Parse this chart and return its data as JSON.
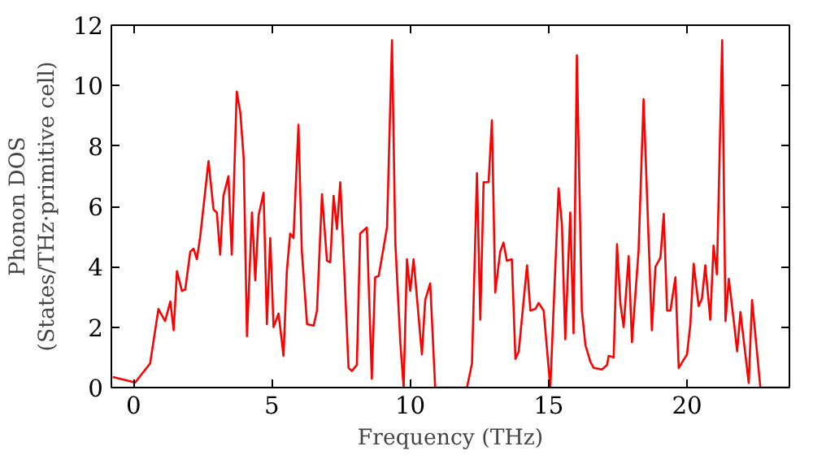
{
  "chart_data": {
    "type": "line",
    "xlabel": "Frequency (THz)",
    "ylabel": "Phonon DOS\n(States/THz·primitive cell)",
    "xlim": [
      -0.8,
      23.7
    ],
    "ylim": [
      0,
      12
    ],
    "xticks": [
      0,
      5,
      10,
      15,
      20
    ],
    "yticks": [
      0,
      2,
      4,
      6,
      8,
      10,
      12
    ],
    "grid": false,
    "marker": "none",
    "line_style": "solid",
    "series": [
      {
        "color": "#ff0000",
        "x": [
          -0.75,
          0.06,
          0.6,
          0.9,
          1.14,
          1.33,
          1.45,
          1.57,
          1.75,
          1.87,
          2.05,
          2.17,
          2.29,
          2.41,
          2.71,
          2.89,
          3.01,
          3.13,
          3.25,
          3.43,
          3.55,
          3.73,
          3.86,
          3.98,
          4.1,
          4.28,
          4.4,
          4.52,
          4.7,
          4.82,
          4.94,
          5.06,
          5.24,
          5.42,
          5.54,
          5.66,
          5.78,
          5.96,
          6.08,
          6.27,
          6.51,
          6.63,
          6.81,
          6.99,
          7.11,
          7.23,
          7.35,
          7.47,
          7.59,
          7.77,
          7.89,
          8.07,
          8.19,
          8.43,
          8.61,
          8.73,
          8.86,
          9.16,
          9.34,
          9.46,
          9.64,
          9.76,
          9.88,
          10.0,
          10.12,
          10.42,
          10.54,
          10.72,
          10.9,
          12.05,
          12.23,
          12.41,
          12.53,
          12.65,
          12.83,
          12.95,
          13.07,
          13.25,
          13.37,
          13.49,
          13.67,
          13.8,
          13.92,
          14.22,
          14.34,
          14.52,
          14.64,
          14.82,
          15.06,
          15.36,
          15.48,
          15.6,
          15.78,
          15.9,
          16.02,
          16.2,
          16.33,
          16.51,
          16.63,
          16.93,
          17.11,
          17.17,
          17.35,
          17.47,
          17.59,
          17.71,
          17.89,
          18.01,
          18.25,
          18.43,
          18.73,
          18.86,
          19.04,
          19.16,
          19.28,
          19.4,
          19.58,
          19.7,
          20.0,
          20.12,
          20.24,
          20.42,
          20.54,
          20.66,
          20.84,
          20.96,
          21.08,
          21.27,
          21.39,
          21.51,
          21.69,
          21.81,
          21.93,
          22.23,
          22.35,
          22.65,
          23.7
        ],
        "values": [
          0.35,
          0.17,
          0.8,
          2.6,
          2.2,
          2.85,
          1.9,
          3.85,
          3.2,
          3.25,
          4.5,
          4.6,
          4.25,
          5.0,
          7.5,
          5.9,
          5.8,
          4.4,
          6.35,
          7.0,
          4.4,
          9.8,
          9.1,
          7.6,
          1.7,
          5.8,
          3.55,
          5.7,
          6.45,
          2.1,
          4.95,
          2.0,
          2.45,
          1.05,
          3.85,
          5.1,
          4.95,
          8.7,
          4.55,
          2.1,
          2.05,
          2.55,
          6.4,
          4.2,
          4.15,
          6.35,
          5.25,
          6.8,
          4.4,
          0.65,
          0.55,
          0.75,
          5.1,
          5.3,
          0.3,
          3.65,
          3.7,
          5.3,
          11.5,
          4.8,
          1.5,
          0.0,
          4.25,
          3.2,
          4.25,
          1.1,
          2.9,
          3.45,
          0.0,
          0.0,
          0.8,
          7.1,
          2.25,
          6.8,
          6.8,
          8.85,
          3.15,
          4.5,
          4.8,
          4.2,
          4.25,
          0.95,
          1.2,
          4.05,
          2.55,
          2.6,
          2.8,
          2.55,
          0.0,
          6.6,
          5.4,
          1.6,
          5.8,
          1.8,
          11.0,
          2.55,
          1.4,
          0.85,
          0.65,
          0.6,
          0.75,
          1.05,
          1.0,
          4.75,
          2.8,
          2.0,
          4.35,
          1.5,
          4.55,
          9.55,
          1.9,
          4.0,
          4.3,
          5.75,
          2.55,
          2.55,
          3.65,
          0.65,
          1.1,
          2.1,
          4.1,
          2.7,
          2.95,
          4.05,
          2.25,
          4.7,
          3.75,
          11.5,
          2.2,
          3.6,
          2.2,
          1.2,
          2.5,
          0.15,
          2.9,
          0.0,
          0.0
        ]
      }
    ]
  }
}
